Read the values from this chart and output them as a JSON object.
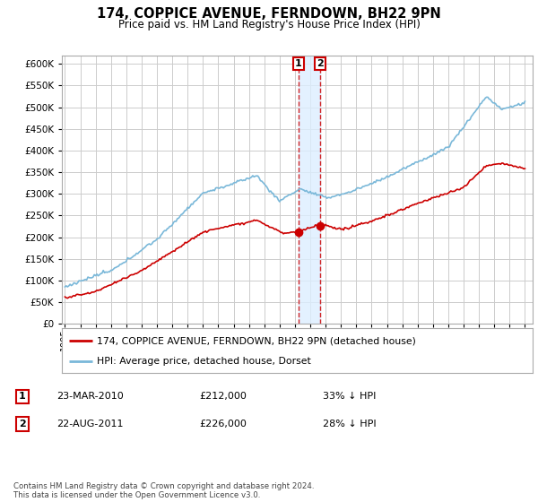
{
  "title": "174, COPPICE AVENUE, FERNDOWN, BH22 9PN",
  "subtitle": "Price paid vs. HM Land Registry's House Price Index (HPI)",
  "legend_line1": "174, COPPICE AVENUE, FERNDOWN, BH22 9PN (detached house)",
  "legend_line2": "HPI: Average price, detached house, Dorset",
  "sale1_date": "23-MAR-2010",
  "sale1_price": "£212,000",
  "sale1_note": "33% ↓ HPI",
  "sale2_date": "22-AUG-2011",
  "sale2_price": "£226,000",
  "sale2_note": "28% ↓ HPI",
  "footnote": "Contains HM Land Registry data © Crown copyright and database right 2024.\nThis data is licensed under the Open Government Licence v3.0.",
  "hpi_color": "#7ab8d9",
  "property_color": "#cc0000",
  "shade_color": "#ddeeff",
  "background_color": "#ffffff",
  "grid_color": "#cccccc",
  "ylim": [
    0,
    620000
  ],
  "yticks": [
    0,
    50000,
    100000,
    150000,
    200000,
    250000,
    300000,
    350000,
    400000,
    450000,
    500000,
    550000,
    600000
  ],
  "sale1_x": 2010.22,
  "sale1_y": 212000,
  "sale2_x": 2011.64,
  "sale2_y": 226000,
  "xlim_left": 1994.8,
  "xlim_right": 2025.5
}
